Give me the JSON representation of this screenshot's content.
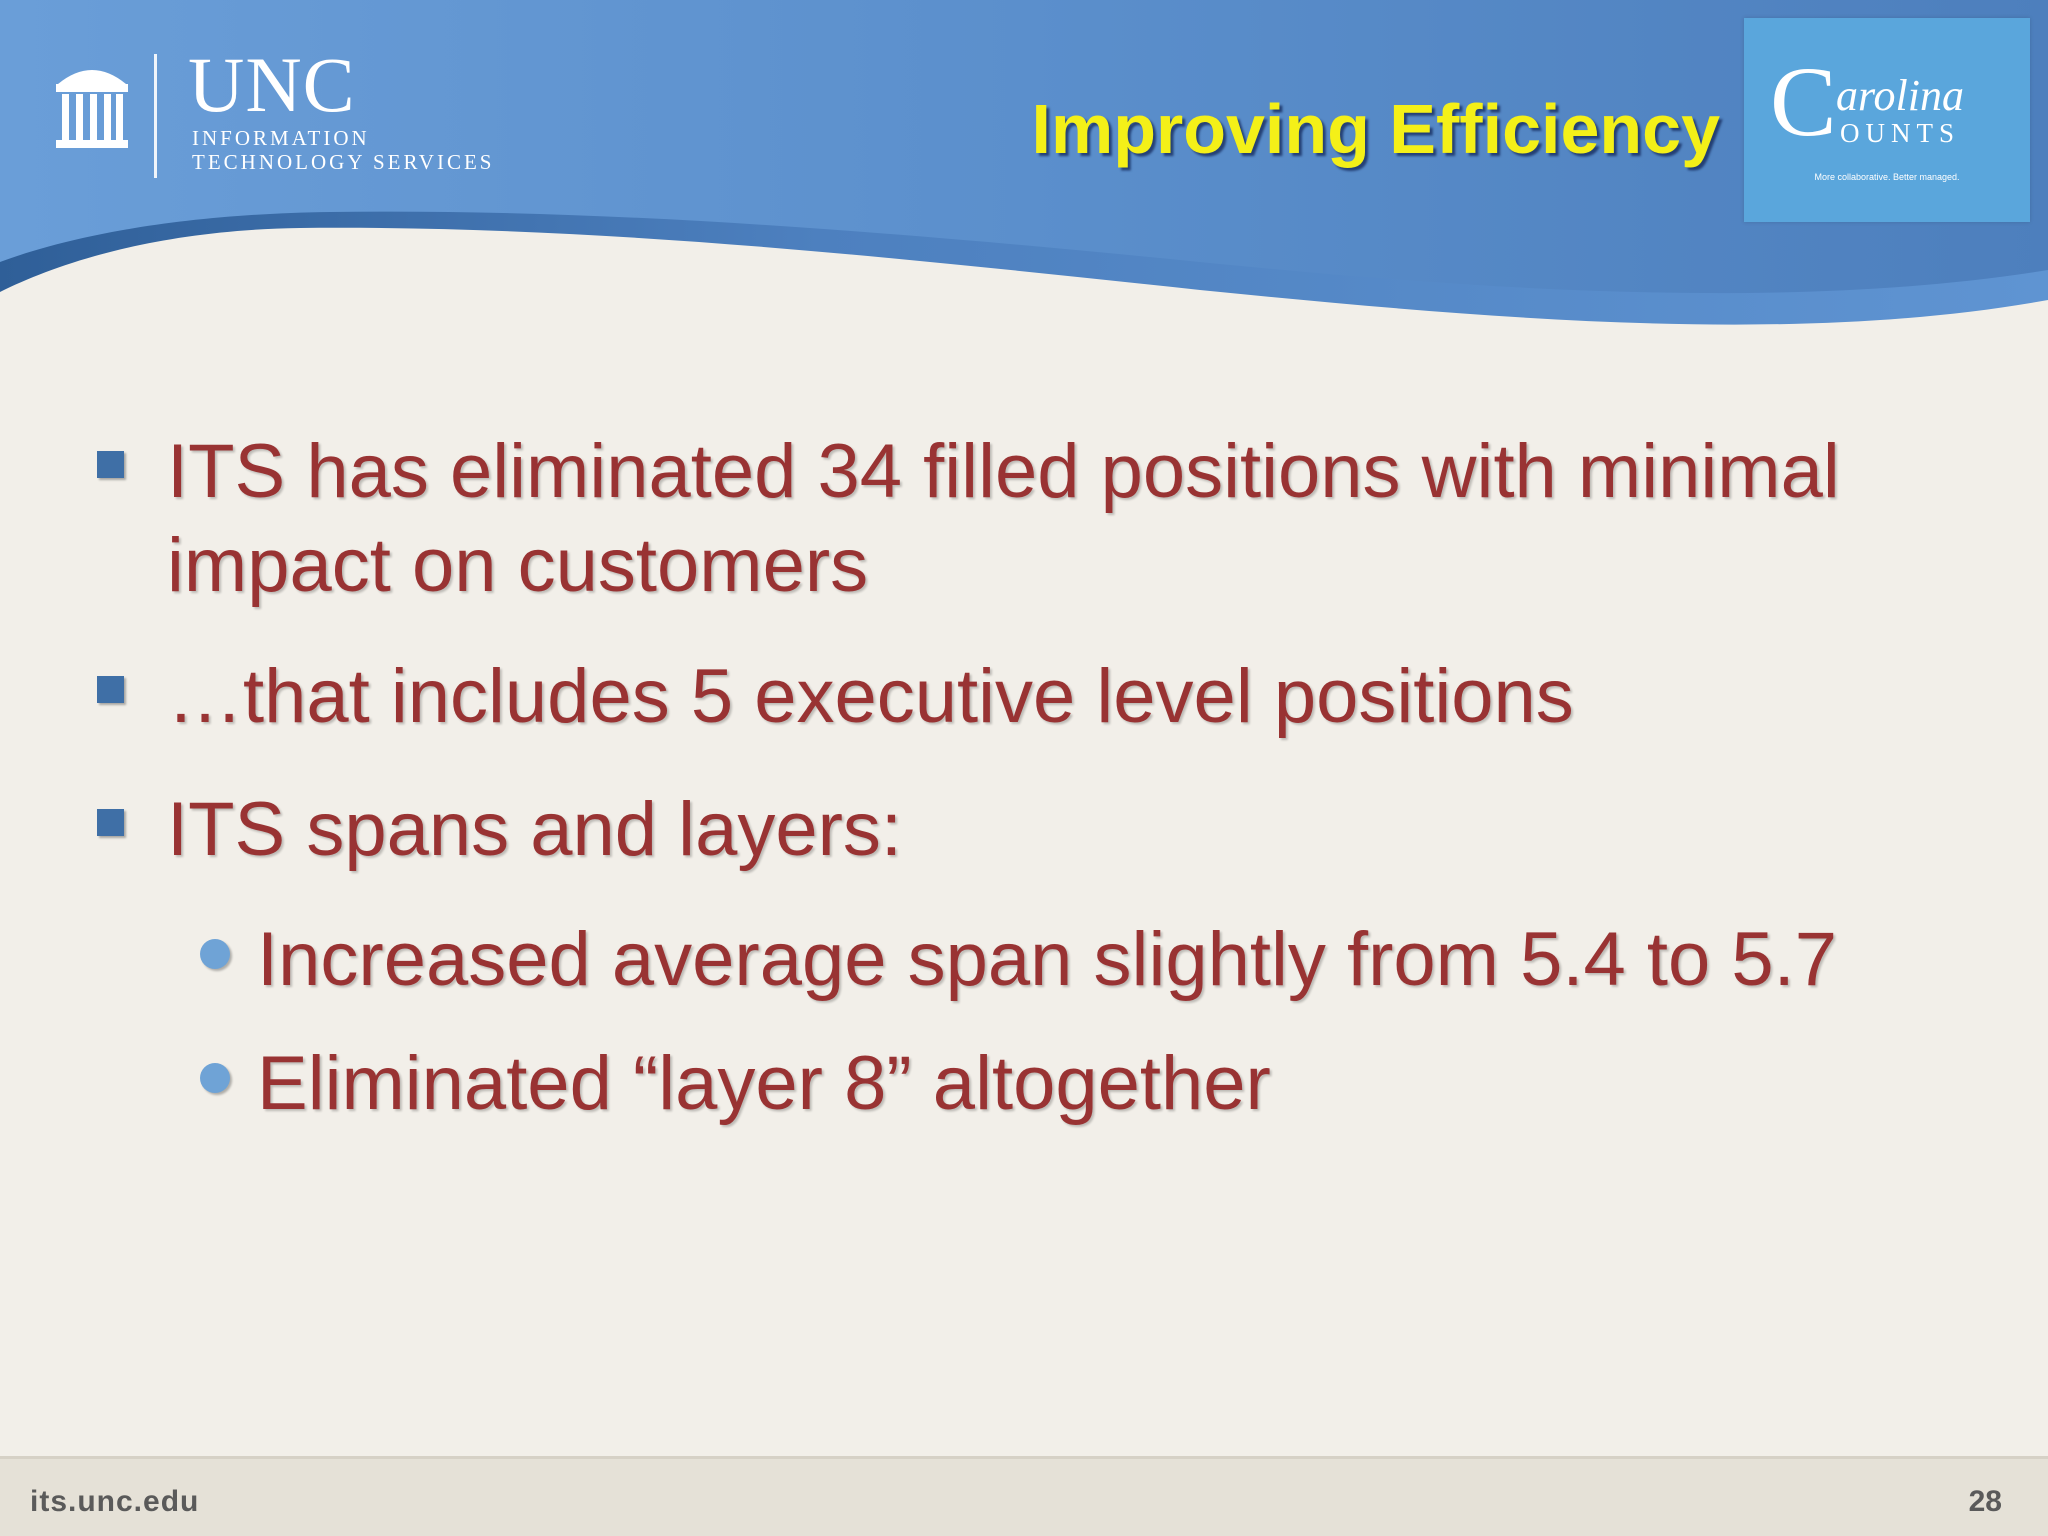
{
  "header": {
    "title": "Improving Efficiency",
    "unc_logo": {
      "word": "UNC",
      "line1": "INFORMATION",
      "line2": "TECHNOLOGY SERVICES",
      "icon": "old-well-icon"
    },
    "carolina_counts_logo": {
      "initial": "C",
      "word1": "arolina",
      "word2": "OUNTS",
      "tagline": "More collaborative. Better managed."
    }
  },
  "bullets": [
    {
      "level": 1,
      "text_line1": "ITS has eliminated 34 filled positions with minimal",
      "text_line2": "impact on customers"
    },
    {
      "level": 1,
      "text": "…that includes 5 executive level positions"
    },
    {
      "level": 1,
      "text": "ITS spans and layers:"
    },
    {
      "level": 2,
      "text": "Increased average span slightly from 5.4 to 5.7"
    },
    {
      "level": 2,
      "text": "Eliminated “layer 8” altogether"
    }
  ],
  "footer": {
    "url": "its.unc.edu",
    "page_number": "28"
  },
  "colors": {
    "header_blue": "#5b8fcc",
    "title_yellow": "#f4f018",
    "bullet_text": "#993333",
    "square_bullet": "#3f6fa6",
    "round_bullet": "#6fa3d6",
    "background": "#f2efe9",
    "carolina_counts_blue": "#5aa6dc"
  }
}
